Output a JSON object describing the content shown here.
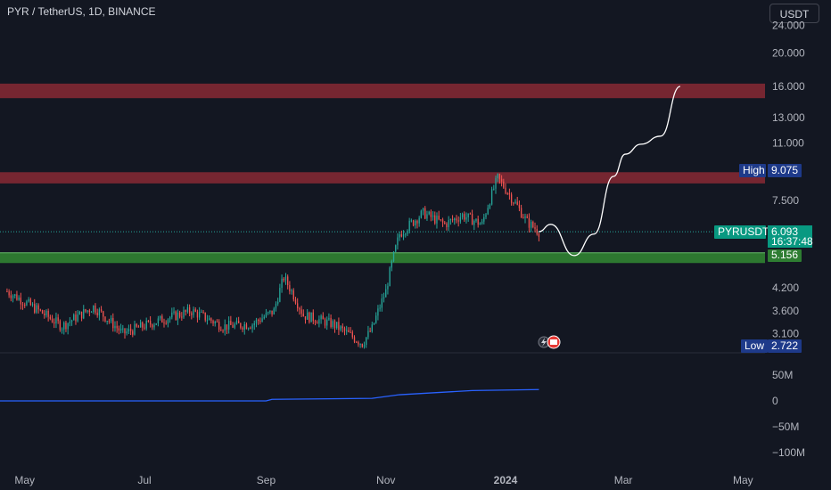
{
  "header": {
    "title": "PYR / TetherUS, 1D, BINANCE",
    "currency": "USDT"
  },
  "colors": {
    "background": "#131722",
    "up": "#26a69a",
    "down": "#ef5350",
    "resistance_zone": "#7b2733",
    "support_zone": "#2e7d32",
    "volume_line": "#2962ff",
    "projection": "#ffffff",
    "label_blue": "#1e3a8a"
  },
  "chart_data": {
    "type": "candlestick",
    "symbol": "PYRUSDT",
    "timeframe": "1D",
    "price_axis": {
      "scale": "log",
      "ticks": [
        "24.000",
        "20.000",
        "16.000",
        "13.000",
        "11.000",
        "7.500",
        "4.200",
        "3.600",
        "3.100"
      ],
      "range": [
        2.65,
        25.5
      ]
    },
    "time_axis": {
      "ticks": [
        "May",
        "Jul",
        "Sep",
        "Nov",
        "2024",
        "Mar",
        "May"
      ]
    },
    "volume_axis": {
      "ticks": [
        "50M",
        "0",
        "−50M",
        "−100M"
      ]
    },
    "labels": {
      "high": {
        "text": "High",
        "value": "9.075"
      },
      "low": {
        "text": "Low",
        "value": "2.722"
      },
      "last": {
        "symbol": "PYRUSDT",
        "value": "6.093",
        "countdown": "16:37:48"
      },
      "support": {
        "value": "5.156"
      }
    },
    "zones": [
      {
        "kind": "resistance",
        "low": 14.8,
        "high": 16.3
      },
      {
        "kind": "resistance",
        "low": 8.4,
        "high": 9.05
      },
      {
        "kind": "support",
        "low": 4.95,
        "high": 5.3
      }
    ],
    "price_path": [
      {
        "date": "2023-04-22",
        "close": 4.1
      },
      {
        "date": "2023-05-05",
        "close": 3.7
      },
      {
        "date": "2023-05-20",
        "close": 3.25
      },
      {
        "date": "2023-06-05",
        "close": 3.7
      },
      {
        "date": "2023-06-20",
        "close": 3.1
      },
      {
        "date": "2023-07-10",
        "close": 3.4
      },
      {
        "date": "2023-07-25",
        "close": 3.6
      },
      {
        "date": "2023-08-10",
        "close": 3.25
      },
      {
        "date": "2023-08-25",
        "close": 3.3
      },
      {
        "date": "2023-09-05",
        "close": 3.6
      },
      {
        "date": "2023-09-10",
        "close": 4.5
      },
      {
        "date": "2023-09-20",
        "close": 3.5
      },
      {
        "date": "2023-10-05",
        "close": 3.3
      },
      {
        "date": "2023-10-20",
        "close": 2.9
      },
      {
        "date": "2023-10-25",
        "close": 3.2
      },
      {
        "date": "2023-11-01",
        "close": 4.1
      },
      {
        "date": "2023-11-08",
        "close": 6.0
      },
      {
        "date": "2023-11-20",
        "close": 6.9
      },
      {
        "date": "2023-12-01",
        "close": 6.4
      },
      {
        "date": "2023-12-10",
        "close": 6.8
      },
      {
        "date": "2023-12-20",
        "close": 6.4
      },
      {
        "date": "2023-12-28",
        "close": 8.7
      },
      {
        "date": "2024-01-05",
        "close": 7.5
      },
      {
        "date": "2024-01-12",
        "close": 6.5
      },
      {
        "date": "2024-01-18",
        "close": 6.1
      }
    ],
    "projection_path": [
      {
        "date": "2024-01-18",
        "value": 6.1
      },
      {
        "date": "2024-01-24",
        "value": 6.4
      },
      {
        "date": "2024-02-05",
        "value": 5.2
      },
      {
        "date": "2024-02-15",
        "value": 6.0
      },
      {
        "date": "2024-02-25",
        "value": 8.8
      },
      {
        "date": "2024-03-02",
        "value": 10.2
      },
      {
        "date": "2024-03-10",
        "value": 10.9
      },
      {
        "date": "2024-03-20",
        "value": 11.5
      },
      {
        "date": "2024-03-30",
        "value": 16.0
      }
    ],
    "volume_cumulative": [
      {
        "date": "2023-04-22",
        "value": 0
      },
      {
        "date": "2023-09-01",
        "value": 0
      },
      {
        "date": "2023-09-04",
        "value": 3000000
      },
      {
        "date": "2023-10-25",
        "value": 5000000
      },
      {
        "date": "2023-11-08",
        "value": 12000000
      },
      {
        "date": "2023-12-15",
        "value": 20000000
      },
      {
        "date": "2024-01-18",
        "value": 22000000
      }
    ]
  }
}
